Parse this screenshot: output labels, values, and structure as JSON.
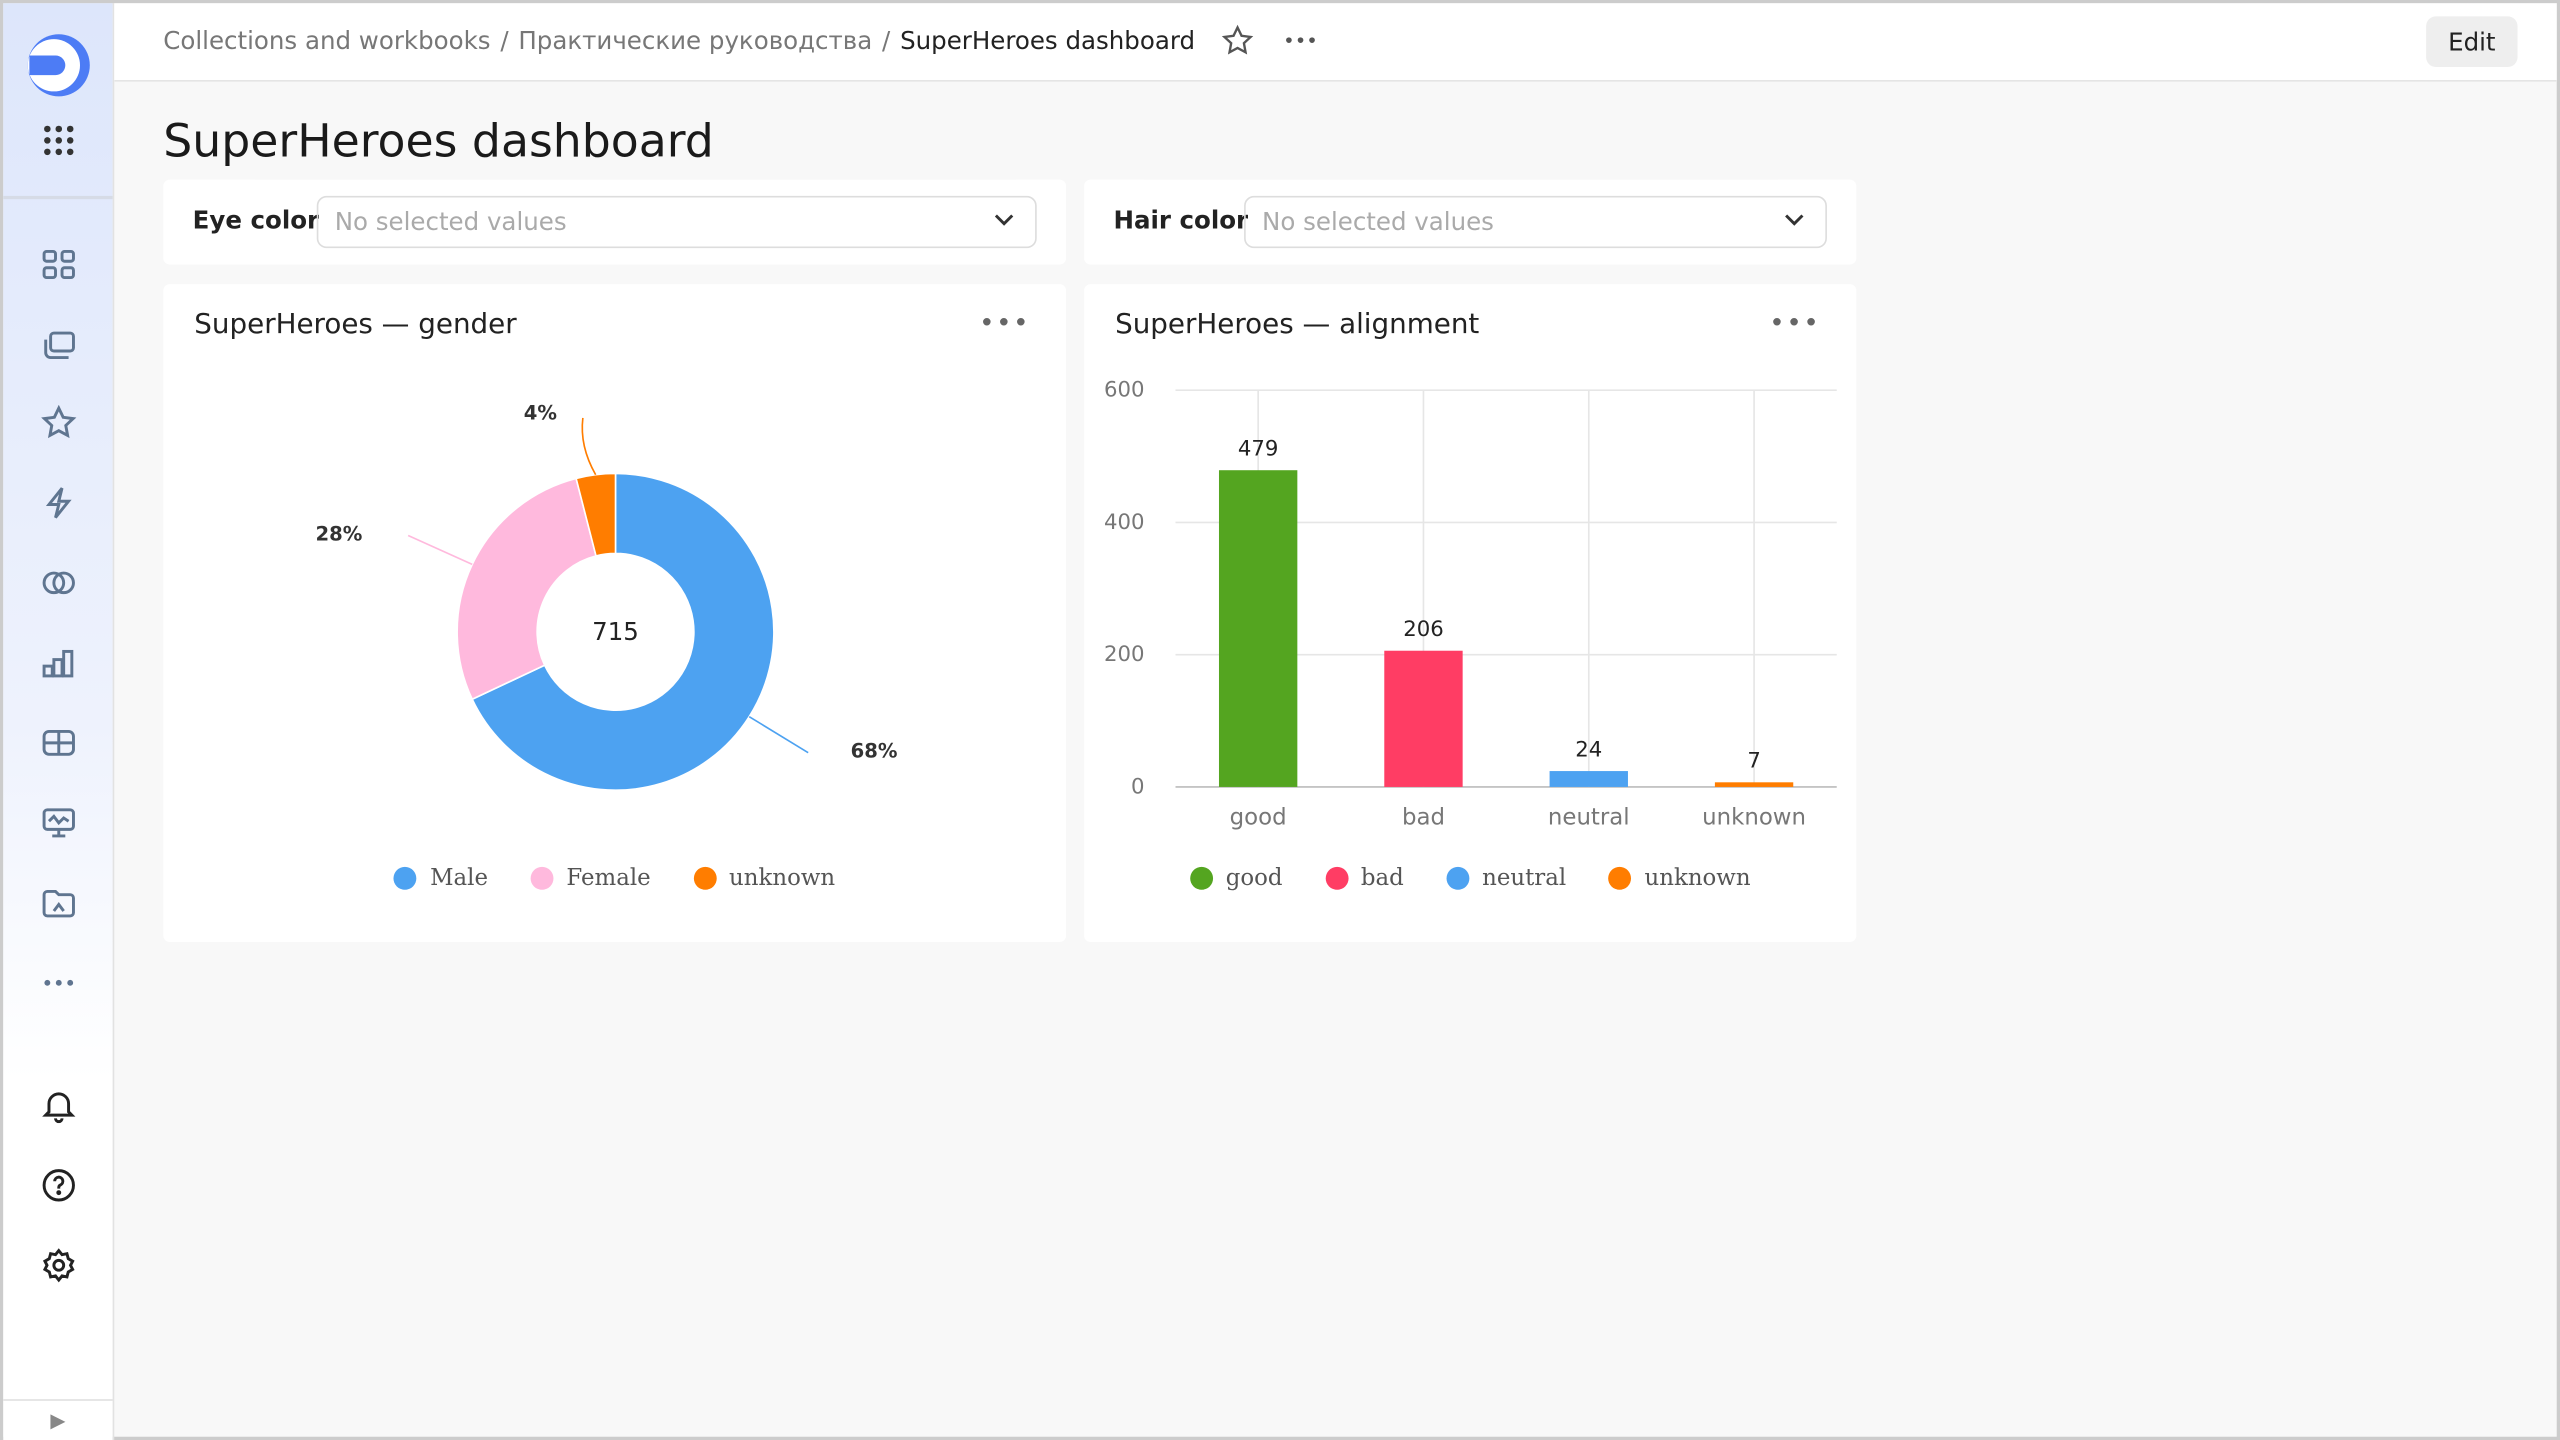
{
  "header": {
    "breadcrumbs": [
      "Collections and workbooks",
      "Практические руководства",
      "SuperHeroes dashboard"
    ],
    "separator": "/",
    "edit_label": "Edit",
    "more": "•••"
  },
  "page": {
    "title": "SuperHeroes dashboard"
  },
  "filters": [
    {
      "label": "Eye color",
      "placeholder": "No selected values"
    },
    {
      "label": "Hair color",
      "placeholder": "No selected values"
    }
  ],
  "sidebar": {
    "icons": [
      "logo-icon",
      "apps-grid-icon",
      "dashboards-icon",
      "collections-icon",
      "favorites-star-icon",
      "connections-lightning-icon",
      "datasets-icon",
      "charts-icon",
      "tables-icon",
      "monitoring-icon",
      "folder-icon",
      "more-icon",
      "notifications-bell-icon",
      "help-icon",
      "settings-gear-icon",
      "expand-icon"
    ]
  },
  "chart_data": [
    {
      "type": "pie",
      "title": "SuperHeroes — gender",
      "total_label": "715",
      "categories": [
        "Male",
        "Female",
        "unknown"
      ],
      "values": [
        68,
        28,
        4
      ],
      "labels": [
        "68%",
        "28%",
        "4%"
      ],
      "colors": [
        "#4da2f1",
        "#ffb9dd",
        "#ff7d00"
      ],
      "legend": "bottom",
      "menu": "•••"
    },
    {
      "type": "bar",
      "title": "SuperHeroes — alignment",
      "categories": [
        "good",
        "bad",
        "neutral",
        "unknown"
      ],
      "values": [
        479,
        206,
        24,
        7
      ],
      "colors": [
        "#54a520",
        "#ff3d64",
        "#4da2f1",
        "#ff7d00"
      ],
      "ylim": [
        0,
        600
      ],
      "yticks": [
        0,
        200,
        400,
        600
      ],
      "grid": true,
      "legend": "bottom",
      "menu": "•••"
    }
  ]
}
